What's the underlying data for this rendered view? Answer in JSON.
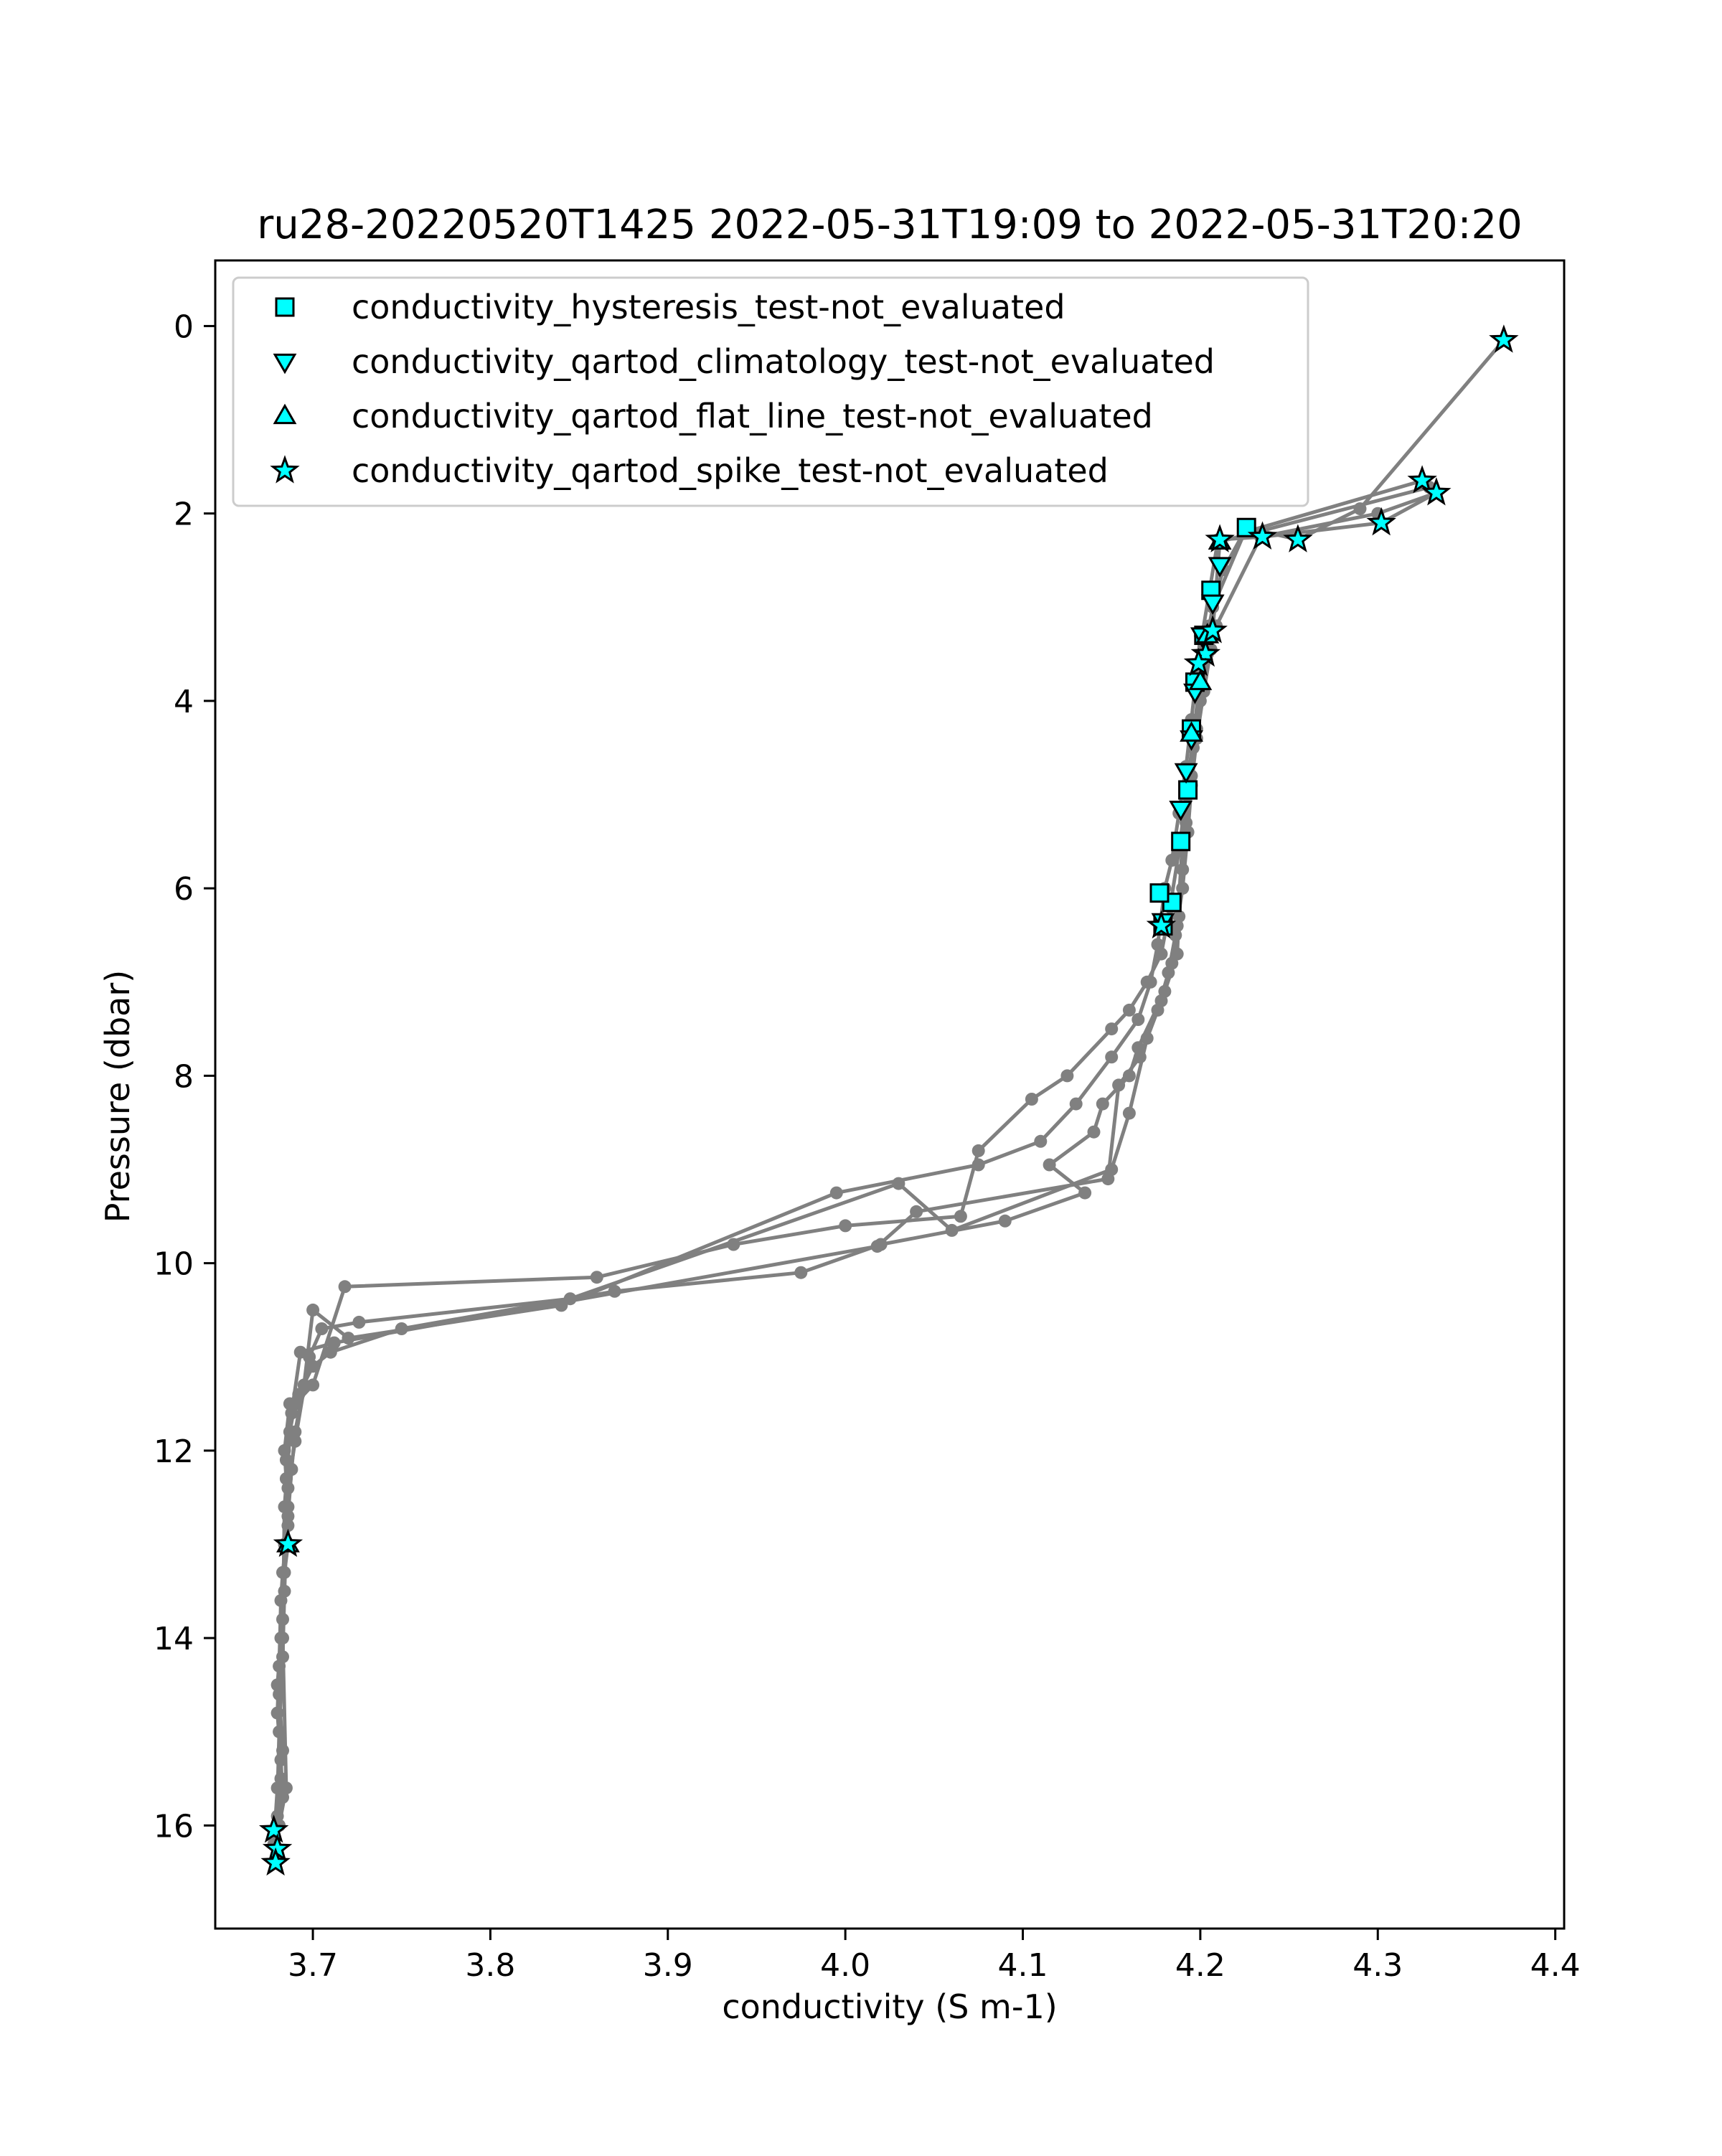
{
  "chart_data": {
    "type": "scatter",
    "title": "ru28-20220520T1425 2022-05-31T19:09 to 2022-05-31T20:20",
    "xlabel": "conductivity (S m-1)",
    "ylabel": "Pressure (dbar)",
    "xlim": [
      3.645,
      4.405
    ],
    "ylim": [
      17.1,
      -0.7
    ],
    "y_inverted": true,
    "xticks": [
      "3.7",
      "3.8",
      "3.9",
      "4.0",
      "4.1",
      "4.2",
      "4.3",
      "4.4"
    ],
    "yticks": [
      "0",
      "2",
      "4",
      "6",
      "8",
      "10",
      "12",
      "14",
      "16"
    ],
    "grid": false,
    "legend_position": "upper-left",
    "line_color": "#808080",
    "marker_fill": "#00ffff",
    "profiles": [
      {
        "points": [
          [
            3.678,
            16.05
          ],
          [
            3.68,
            15.9
          ],
          [
            3.683,
            15.7
          ],
          [
            3.682,
            15.3
          ],
          [
            3.68,
            14.8
          ],
          [
            3.681,
            14.3
          ],
          [
            3.682,
            13.6
          ],
          [
            3.683,
            13.3
          ],
          [
            3.686,
            12.8
          ],
          [
            3.685,
            12.3
          ],
          [
            3.684,
            12.0
          ],
          [
            3.687,
            11.5
          ],
          [
            3.692,
            11.4
          ],
          [
            3.7,
            11.1
          ],
          [
            3.71,
            10.95
          ],
          [
            3.75,
            10.7
          ],
          [
            3.87,
            10.3
          ],
          [
            3.975,
            10.1
          ],
          [
            4.02,
            9.8
          ],
          [
            4.09,
            9.55
          ],
          [
            4.135,
            9.25
          ],
          [
            4.115,
            8.95
          ],
          [
            4.14,
            8.6
          ],
          [
            4.145,
            8.3
          ],
          [
            4.16,
            8.0
          ],
          [
            4.165,
            7.7
          ],
          [
            4.18,
            7.1
          ],
          [
            4.187,
            6.7
          ],
          [
            4.188,
            6.3
          ],
          [
            4.19,
            5.8
          ],
          [
            4.192,
            5.3
          ],
          [
            4.195,
            4.8
          ],
          [
            4.198,
            4.3
          ],
          [
            4.2,
            3.8
          ],
          [
            4.203,
            3.45
          ],
          [
            4.205,
            3.2
          ],
          [
            4.208,
            2.9
          ],
          [
            4.213,
            2.6
          ],
          [
            4.226,
            2.15
          ],
          [
            4.255,
            2.28
          ],
          [
            4.29,
            1.95
          ],
          [
            4.371,
            0.15
          ]
        ]
      },
      {
        "points": [
          [
            3.678,
            16.2
          ],
          [
            3.68,
            15.6
          ],
          [
            3.683,
            15.2
          ],
          [
            3.681,
            14.6
          ],
          [
            3.682,
            14.0
          ],
          [
            3.684,
            13.3
          ],
          [
            3.686,
            13.0
          ],
          [
            3.686,
            12.6
          ],
          [
            3.685,
            12.1
          ],
          [
            3.687,
            11.8
          ],
          [
            3.69,
            11.5
          ],
          [
            3.7,
            11.3
          ],
          [
            3.718,
            10.25
          ],
          [
            3.86,
            10.15
          ],
          [
            3.937,
            9.8
          ],
          [
            4.0,
            9.6
          ],
          [
            4.065,
            9.5
          ],
          [
            4.075,
            8.8
          ],
          [
            4.105,
            8.25
          ],
          [
            4.125,
            8.0
          ],
          [
            4.15,
            7.5
          ],
          [
            4.16,
            7.3
          ],
          [
            4.17,
            7.0
          ],
          [
            4.178,
            6.7
          ],
          [
            4.183,
            6.2
          ],
          [
            4.188,
            5.6
          ],
          [
            4.192,
            5.0
          ],
          [
            4.196,
            4.4
          ],
          [
            4.199,
            3.9
          ],
          [
            4.201,
            3.3
          ],
          [
            4.21,
            2.28
          ],
          [
            4.235,
            2.25
          ],
          [
            4.302,
            2.1
          ],
          [
            4.333,
            1.78
          ]
        ]
      },
      {
        "points": [
          [
            3.68,
            16.3
          ],
          [
            3.682,
            15.5
          ],
          [
            3.68,
            14.5
          ],
          [
            3.683,
            13.8
          ],
          [
            3.684,
            13.0
          ],
          [
            3.686,
            12.7
          ],
          [
            3.688,
            12.2
          ],
          [
            3.69,
            11.8
          ],
          [
            3.695,
            11.3
          ],
          [
            3.7,
            10.5
          ],
          [
            3.72,
            10.8
          ],
          [
            3.84,
            10.45
          ],
          [
            3.995,
            9.25
          ],
          [
            4.075,
            8.95
          ],
          [
            4.11,
            8.7
          ],
          [
            4.13,
            8.3
          ],
          [
            4.15,
            7.8
          ],
          [
            4.165,
            7.4
          ],
          [
            4.172,
            7.0
          ],
          [
            4.176,
            6.6
          ],
          [
            4.18,
            6.0
          ],
          [
            4.184,
            5.7
          ],
          [
            4.188,
            5.2
          ],
          [
            4.192,
            4.7
          ],
          [
            4.195,
            4.2
          ],
          [
            4.198,
            3.7
          ],
          [
            4.2,
            3.3
          ],
          [
            4.207,
            3.25
          ],
          [
            4.211,
            2.3
          ],
          [
            4.329,
            1.72
          ]
        ]
      },
      {
        "points": [
          [
            3.679,
            16.4
          ],
          [
            3.681,
            15.0
          ],
          [
            3.683,
            14.2
          ],
          [
            3.684,
            13.5
          ],
          [
            3.686,
            12.4
          ],
          [
            3.69,
            11.9
          ],
          [
            3.698,
            11.0
          ],
          [
            3.705,
            10.7
          ],
          [
            3.726,
            10.63
          ],
          [
            3.845,
            10.38
          ],
          [
            4.03,
            9.15
          ],
          [
            4.06,
            9.65
          ],
          [
            4.15,
            9.0
          ],
          [
            4.16,
            8.4
          ],
          [
            4.17,
            7.6
          ],
          [
            4.178,
            7.2
          ],
          [
            4.184,
            6.8
          ],
          [
            4.187,
            6.4
          ],
          [
            4.19,
            5.5
          ],
          [
            4.193,
            5.0
          ],
          [
            4.196,
            4.5
          ],
          [
            4.2,
            4.0
          ],
          [
            4.204,
            3.5
          ],
          [
            4.207,
            3.0
          ],
          [
            4.225,
            2.2
          ],
          [
            4.325,
            1.65
          ]
        ]
      },
      {
        "points": [
          [
            3.681,
            16.0
          ],
          [
            3.685,
            15.6
          ],
          [
            3.683,
            14.0
          ],
          [
            3.684,
            12.6
          ],
          [
            3.688,
            11.6
          ],
          [
            3.693,
            10.95
          ],
          [
            3.712,
            10.85
          ],
          [
            4.018,
            9.82
          ],
          [
            4.04,
            9.45
          ],
          [
            4.148,
            9.1
          ],
          [
            4.154,
            8.1
          ],
          [
            4.166,
            7.8
          ],
          [
            4.176,
            7.3
          ],
          [
            4.182,
            6.9
          ],
          [
            4.186,
            6.5
          ],
          [
            4.19,
            6.0
          ],
          [
            4.193,
            5.4
          ],
          [
            4.195,
            4.9
          ],
          [
            4.198,
            4.4
          ],
          [
            4.202,
            3.9
          ],
          [
            4.206,
            3.45
          ],
          [
            4.209,
            3.2
          ],
          [
            4.234,
            2.25
          ],
          [
            4.3,
            2.0
          ],
          [
            4.333,
            1.78
          ]
        ]
      }
    ],
    "series": [
      {
        "name": "conductivity_hysteresis_test-not_evaluated",
        "marker": "square",
        "points": [
          [
            4.226,
            2.15
          ],
          [
            4.206,
            2.82
          ],
          [
            4.202,
            3.3
          ],
          [
            4.197,
            3.8
          ],
          [
            4.195,
            4.3
          ],
          [
            4.193,
            4.95
          ],
          [
            4.189,
            5.5
          ],
          [
            4.184,
            6.15
          ],
          [
            4.177,
            6.05
          ],
          [
            4.179,
            6.4
          ]
        ]
      },
      {
        "name": "conductivity_qartod_climatology_test-not_evaluated",
        "marker": "triangle-down",
        "points": [
          [
            4.211,
            2.55
          ],
          [
            4.207,
            2.95
          ],
          [
            4.201,
            3.3
          ],
          [
            4.197,
            3.9
          ],
          [
            4.195,
            4.4
          ],
          [
            4.192,
            4.75
          ],
          [
            4.189,
            5.15
          ],
          [
            4.179,
            6.35
          ]
        ]
      },
      {
        "name": "conductivity_qartod_flat_line_test-not_evaluated",
        "marker": "triangle-up",
        "points": [
          [
            4.211,
            2.3
          ],
          [
            4.204,
            3.3
          ],
          [
            4.2,
            3.8
          ],
          [
            4.195,
            4.35
          ],
          [
            3.686,
            13.0
          ]
        ]
      },
      {
        "name": "conductivity_qartod_spike_test-not_evaluated",
        "marker": "star",
        "points": [
          [
            4.371,
            0.15
          ],
          [
            4.325,
            1.65
          ],
          [
            4.333,
            1.78
          ],
          [
            4.302,
            2.1
          ],
          [
            4.211,
            2.28
          ],
          [
            4.235,
            2.25
          ],
          [
            4.255,
            2.28
          ],
          [
            4.207,
            3.25
          ],
          [
            4.203,
            3.5
          ],
          [
            4.199,
            3.6
          ],
          [
            4.178,
            6.4
          ],
          [
            3.686,
            13.0
          ],
          [
            3.678,
            16.05
          ],
          [
            3.68,
            16.25
          ],
          [
            3.679,
            16.4
          ]
        ]
      }
    ]
  }
}
